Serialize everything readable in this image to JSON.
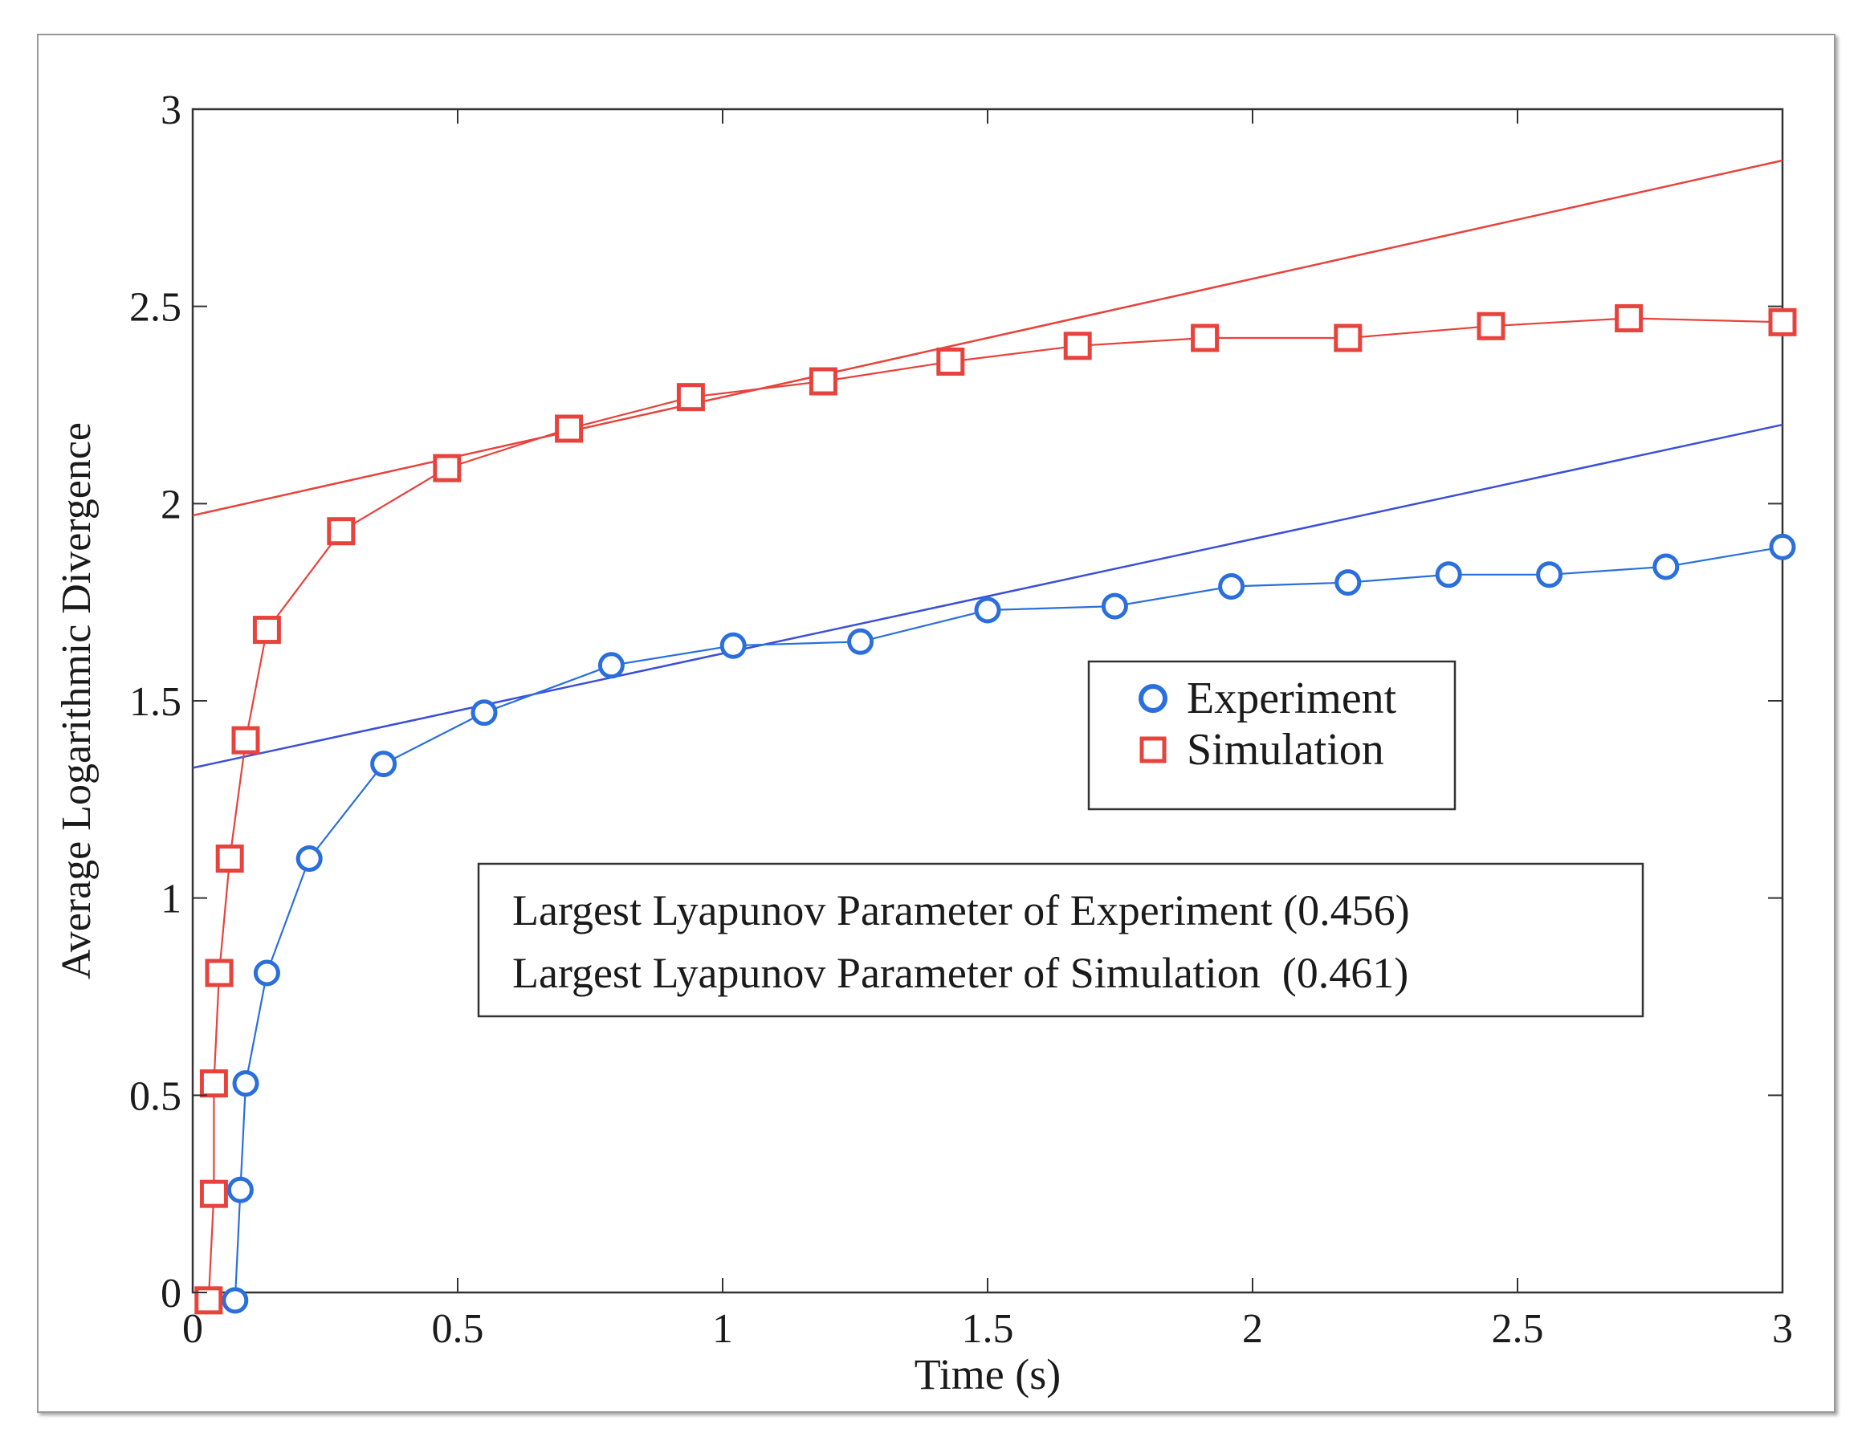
{
  "chart_data": {
    "type": "line",
    "title": "",
    "xlabel": "Time (s)",
    "ylabel": "Average Logarithmic Divergence",
    "xlim": [
      0,
      3
    ],
    "ylim": [
      0,
      3
    ],
    "xticks": [
      0,
      0.5,
      1,
      1.5,
      2,
      2.5,
      3
    ],
    "xtick_labels": [
      "0",
      "0.5",
      "1",
      "1.5",
      "2",
      "2.5",
      "3"
    ],
    "yticks": [
      0,
      0.5,
      1,
      1.5,
      2,
      2.5,
      3
    ],
    "ytick_labels": [
      "0",
      "0.5",
      "1",
      "1.5",
      "2",
      "2.5",
      "3"
    ],
    "grid": false,
    "legend": {
      "position": "center-right",
      "entries": [
        {
          "label": "Experiment",
          "marker": "circle",
          "color": "#2a6fdc"
        },
        {
          "label": "Simulation",
          "marker": "square",
          "color": "#e8423c"
        }
      ]
    },
    "annotation": {
      "lines": [
        "Largest Lyapunov Parameter of Experiment (0.456)",
        "Largest Lyapunov Parameter of Simulation  (0.461)"
      ]
    },
    "series": [
      {
        "name": "Experiment",
        "color": "#2a6fdc",
        "marker": "circle",
        "x": [
          0.08,
          0.09,
          0.1,
          0.14,
          0.22,
          0.36,
          0.55,
          0.79,
          1.02,
          1.26,
          1.5,
          1.74,
          1.96,
          2.18,
          2.37,
          2.56,
          2.78,
          3.0
        ],
        "y": [
          -0.02,
          0.26,
          0.53,
          0.81,
          1.1,
          1.34,
          1.47,
          1.59,
          1.64,
          1.65,
          1.73,
          1.74,
          1.79,
          1.8,
          1.82,
          1.82,
          1.84,
          1.89
        ]
      },
      {
        "name": "Simulation",
        "color": "#e8423c",
        "marker": "square",
        "x": [
          0.03,
          0.04,
          0.04,
          0.05,
          0.07,
          0.1,
          0.14,
          0.28,
          0.48,
          0.71,
          0.94,
          1.19,
          1.43,
          1.67,
          1.91,
          2.18,
          2.45,
          2.71,
          3.0
        ],
        "y": [
          -0.02,
          0.25,
          0.53,
          0.81,
          1.1,
          1.4,
          1.68,
          1.93,
          2.09,
          2.19,
          2.27,
          2.31,
          2.36,
          2.4,
          2.42,
          2.42,
          2.45,
          2.47,
          2.46
        ]
      }
    ],
    "fit_lines": [
      {
        "name": "Experiment fit",
        "color": "#3b4fd8",
        "x": [
          0,
          3
        ],
        "y": [
          1.33,
          2.2
        ]
      },
      {
        "name": "Simulation fit",
        "color": "#e8423c",
        "x": [
          0,
          3
        ],
        "y": [
          1.97,
          2.87
        ]
      }
    ]
  }
}
